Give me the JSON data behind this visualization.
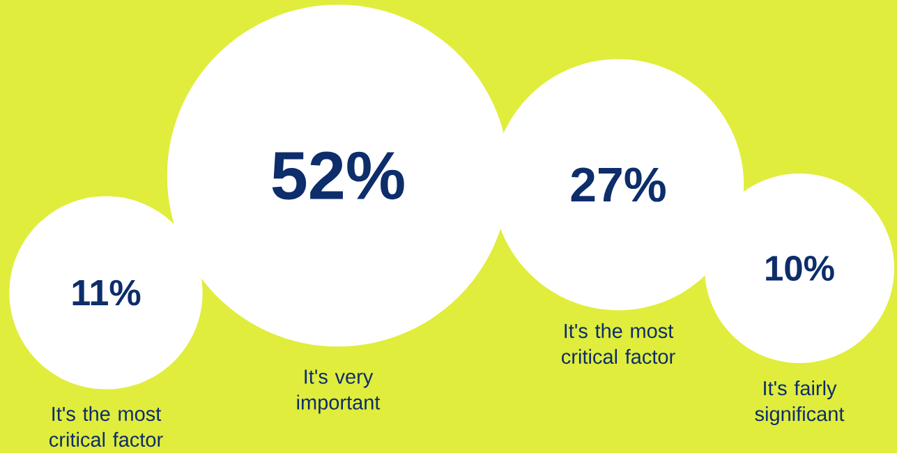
{
  "chart_data": {
    "type": "other",
    "categories": [
      "It's the most critical factor",
      "It's very important",
      "It's the most critical factor",
      "It's fairly significant"
    ],
    "values": [
      11,
      52,
      27,
      10
    ],
    "value_labels": [
      "11%",
      "52%",
      "27%",
      "10%"
    ]
  }
}
